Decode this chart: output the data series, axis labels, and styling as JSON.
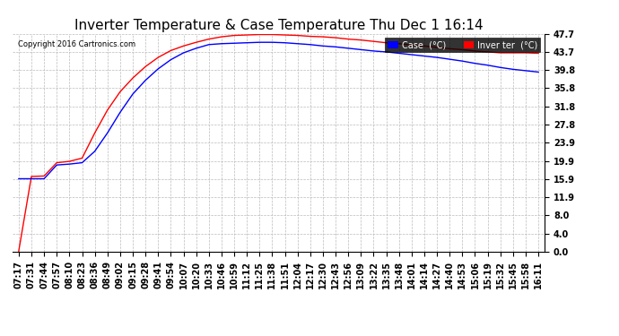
{
  "title": "Inverter Temperature & Case Temperature Thu Dec 1 16:14",
  "copyright": "Copyright 2016 Cartronics.com",
  "yticks": [
    0.0,
    4.0,
    8.0,
    11.9,
    15.9,
    19.9,
    23.9,
    27.8,
    31.8,
    35.8,
    39.8,
    43.7,
    47.7
  ],
  "ymin": 0.0,
  "ymax": 47.7,
  "legend_case_label": "Case  (°C)",
  "case_color": "#0000ff",
  "inverter_color": "#ff0000",
  "background_color": "#ffffff",
  "plot_bg_color": "#ffffff",
  "grid_color": "#bbbbbb",
  "title_fontsize": 11,
  "tick_fontsize": 7,
  "xtick_labels": [
    "07:17",
    "07:31",
    "07:44",
    "07:57",
    "08:10",
    "08:23",
    "08:36",
    "08:49",
    "09:02",
    "09:15",
    "09:28",
    "09:41",
    "09:54",
    "10:07",
    "10:20",
    "10:33",
    "10:46",
    "10:59",
    "11:12",
    "11:25",
    "11:38",
    "11:51",
    "12:04",
    "12:17",
    "12:30",
    "12:43",
    "12:56",
    "13:09",
    "13:22",
    "13:35",
    "13:48",
    "14:01",
    "14:14",
    "14:27",
    "14:40",
    "14:53",
    "15:06",
    "15:19",
    "15:32",
    "15:45",
    "15:58",
    "16:11"
  ],
  "n_points": 42,
  "inverter_data": [
    0.2,
    16.5,
    16.6,
    19.5,
    19.8,
    20.5,
    26.0,
    31.0,
    35.0,
    38.0,
    40.5,
    42.5,
    44.0,
    45.0,
    45.8,
    46.5,
    47.0,
    47.3,
    47.4,
    47.5,
    47.5,
    47.4,
    47.3,
    47.1,
    47.0,
    46.8,
    46.5,
    46.3,
    46.0,
    45.7,
    45.5,
    45.2,
    45.0,
    44.7,
    44.4,
    44.2,
    43.9,
    43.7,
    43.5,
    43.5,
    43.5,
    43.4
  ],
  "case_data": [
    16.0,
    16.0,
    16.0,
    19.0,
    19.2,
    19.5,
    22.0,
    26.0,
    30.5,
    34.5,
    37.5,
    40.0,
    42.0,
    43.5,
    44.5,
    45.3,
    45.5,
    45.6,
    45.7,
    45.8,
    45.8,
    45.7,
    45.5,
    45.3,
    45.0,
    44.8,
    44.5,
    44.2,
    43.9,
    43.7,
    43.4,
    43.1,
    42.8,
    42.5,
    42.1,
    41.7,
    41.2,
    40.8,
    40.3,
    39.9,
    39.6,
    39.3
  ]
}
